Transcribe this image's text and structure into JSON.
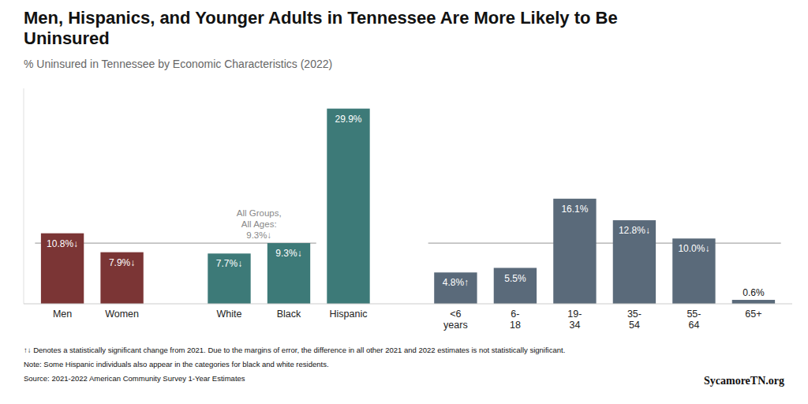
{
  "chart_data": {
    "type": "bar",
    "title": "Men, Hispanics, and Younger Adults in Tennessee Are More Likely to Be\nUninsured",
    "subtitle": "% Uninsured in Tennessee by Economic Characteristics (2022)",
    "categories": [
      "Men",
      "Women",
      "White",
      "Black",
      "Hispanic",
      "<6\nyears",
      "6-\n18",
      "19-\n34",
      "35-\n54",
      "55-\n64",
      "65+"
    ],
    "values": [
      10.8,
      7.9,
      7.7,
      9.3,
      29.9,
      4.8,
      5.5,
      16.1,
      12.8,
      10.0,
      0.6
    ],
    "value_labels": [
      "10.8%↓",
      "7.9%↓",
      "7.7%↓",
      "9.3%↓",
      "29.9%",
      "4.8%↑",
      "5.5%",
      "16.1%",
      "12.8%↓",
      "10.0%↓",
      "0.6%"
    ],
    "colors": [
      "#7b3535",
      "#7b3535",
      "#3d7a78",
      "#3d7a78",
      "#3d7a78",
      "#5a6a7a",
      "#5a6a7a",
      "#5a6a7a",
      "#5a6a7a",
      "#5a6a7a",
      "#5a6a7a"
    ],
    "data_labels": true,
    "reference_line": 9.3,
    "reference_label": [
      "All Groups,",
      "All Ages:",
      "9.3%↓"
    ],
    "ylim": [
      0,
      33
    ],
    "tick_labels": "x",
    "grid": false,
    "footnotes": [
      "↑↓ Denotes a statistically significant change from 2021. Due to the margins of error, the difference in all other 2021 and 2022 estimates is not statistically significant.",
      "Note: Some Hispanic individuals also appear in the categories for black and white residents.",
      "Source: 2021-2022 American Community Survey 1-Year Estimates"
    ],
    "source": "SycamoreTN.org"
  }
}
